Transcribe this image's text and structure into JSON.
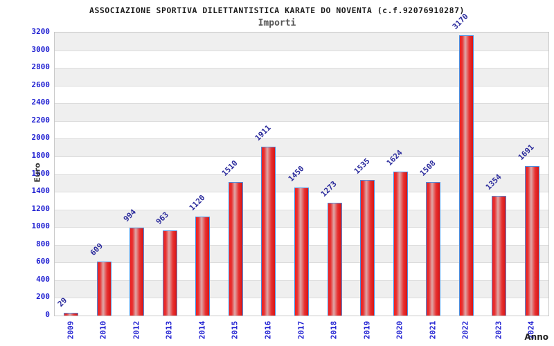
{
  "header": {
    "title": "ASSOCIAZIONE SPORTIVA DILETTANTISTICA KARATE DO NOVENTA (c.f.92076910287)",
    "subtitle": "Importi"
  },
  "chart_data": {
    "type": "bar",
    "title": "ASSOCIAZIONE SPORTIVA DILETTANTISTICA KARATE DO NOVENTA (c.f.92076910287)",
    "subtitle": "Importi",
    "xlabel": "Anno",
    "ylabel": "Euro",
    "categories": [
      "2009",
      "2010",
      "2012",
      "2013",
      "2014",
      "2015",
      "2016",
      "2017",
      "2018",
      "2019",
      "2020",
      "2021",
      "2022",
      "2023",
      "2024"
    ],
    "values": [
      29,
      609,
      994,
      963,
      1120,
      1510,
      1911,
      1450,
      1273,
      1535,
      1624,
      1508,
      3170,
      1354,
      1691
    ],
    "ylim": [
      0,
      3200
    ],
    "ytick_step": 200,
    "grid": "alternating horizontal bands, light gray / white, gridline every 200",
    "legend": "none",
    "colors": {
      "bar_fill": "#e62222",
      "bar_highlight": "#dfa8a8",
      "bar_border": "#4a90e2",
      "tick_label": "#1d1dd1",
      "value_label": "#2a2a9c",
      "band_gray": "#efefef",
      "plot_border": "#c8c8c8",
      "title_color": "#1a1a1a",
      "subtitle_color": "#555555"
    }
  }
}
